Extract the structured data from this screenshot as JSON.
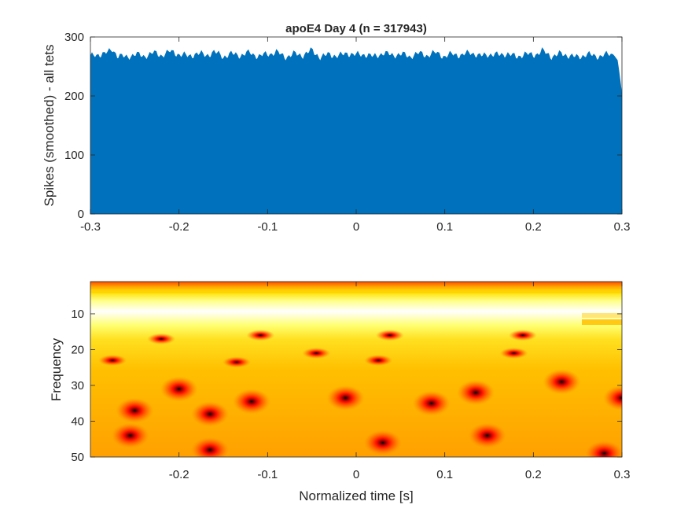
{
  "chart_data": [
    {
      "type": "area",
      "title": "apoE4 Day 4 (n = 317943)",
      "xlabel": "",
      "ylabel": "Spikes (smoothed) - all tets",
      "xlim": [
        -0.3,
        0.3
      ],
      "ylim": [
        0,
        300
      ],
      "xticks": [
        -0.3,
        -0.2,
        -0.1,
        0,
        0.1,
        0.2,
        0.3
      ],
      "xtick_labels": [
        "-0.3",
        "-0.2",
        "-0.1",
        "0",
        "0.1",
        "0.2",
        "0.3"
      ],
      "yticks": [
        0,
        100,
        200,
        300
      ],
      "ytick_labels": [
        "0",
        "100",
        "200",
        "300"
      ],
      "color": "#0072BD",
      "series": [
        {
          "x": [
            -0.3,
            -0.29,
            -0.28,
            -0.275,
            -0.27,
            -0.26,
            -0.25,
            -0.24,
            -0.23,
            -0.22,
            -0.21,
            -0.2,
            -0.19,
            -0.18,
            -0.17,
            -0.16,
            -0.15,
            -0.14,
            -0.13,
            -0.12,
            -0.11,
            -0.1,
            -0.09,
            -0.08,
            -0.07,
            -0.06,
            -0.05,
            -0.04,
            -0.03,
            -0.02,
            -0.01,
            0,
            0.01,
            0.02,
            0.03,
            0.04,
            0.05,
            0.06,
            0.07,
            0.08,
            0.09,
            0.1,
            0.11,
            0.12,
            0.13,
            0.14,
            0.15,
            0.16,
            0.17,
            0.18,
            0.19,
            0.2,
            0.21,
            0.22,
            0.23,
            0.24,
            0.25,
            0.26,
            0.27,
            0.28,
            0.29,
            0.295,
            0.3
          ],
          "values": [
            265,
            270,
            272,
            279,
            268,
            264,
            270,
            266,
            272,
            268,
            274,
            270,
            266,
            271,
            268,
            273,
            266,
            270,
            268,
            272,
            266,
            270,
            273,
            265,
            270,
            268,
            276,
            264,
            270,
            266,
            272,
            268,
            270,
            265,
            272,
            268,
            270,
            266,
            271,
            268,
            272,
            266,
            270,
            268,
            273,
            266,
            270,
            268,
            271,
            265,
            270,
            268,
            275,
            266,
            270,
            268,
            264,
            270,
            266,
            268,
            270,
            260,
            200
          ]
        }
      ]
    },
    {
      "type": "heatmap",
      "title": "",
      "xlabel": "Normalized time [s]",
      "ylabel": "Frequency",
      "xlim": [
        -0.3,
        0.3
      ],
      "ylim": [
        50,
        1
      ],
      "xticks": [
        -0.2,
        -0.1,
        0,
        0.1,
        0.2,
        0.3
      ],
      "xtick_labels": [
        "-0.2",
        "-0.1",
        "0",
        "0.1",
        "0.2",
        "0.3"
      ],
      "yticks": [
        10,
        20,
        30,
        40,
        50
      ],
      "ytick_labels": [
        "10",
        "20",
        "30",
        "40",
        "50"
      ],
      "colormap": "hot",
      "low_power_spots": [
        {
          "t": -0.275,
          "f": 23
        },
        {
          "t": -0.22,
          "f": 17
        },
        {
          "t": -0.2,
          "f": 31
        },
        {
          "t": -0.25,
          "f": 37
        },
        {
          "t": -0.255,
          "f": 44
        },
        {
          "t": -0.165,
          "f": 38
        },
        {
          "t": -0.165,
          "f": 48
        },
        {
          "t": -0.135,
          "f": 23.5
        },
        {
          "t": -0.118,
          "f": 34.5
        },
        {
          "t": -0.108,
          "f": 16
        },
        {
          "t": -0.045,
          "f": 21
        },
        {
          "t": -0.012,
          "f": 33.5
        },
        {
          "t": 0.025,
          "f": 23
        },
        {
          "t": 0.038,
          "f": 16
        },
        {
          "t": 0.03,
          "f": 46
        },
        {
          "t": 0.085,
          "f": 35
        },
        {
          "t": 0.135,
          "f": 32
        },
        {
          "t": 0.148,
          "f": 44
        },
        {
          "t": 0.178,
          "f": 21
        },
        {
          "t": 0.188,
          "f": 16
        },
        {
          "t": 0.232,
          "f": 29
        },
        {
          "t": 0.3,
          "f": 33.5
        },
        {
          "t": 0.28,
          "f": 49
        }
      ]
    }
  ]
}
